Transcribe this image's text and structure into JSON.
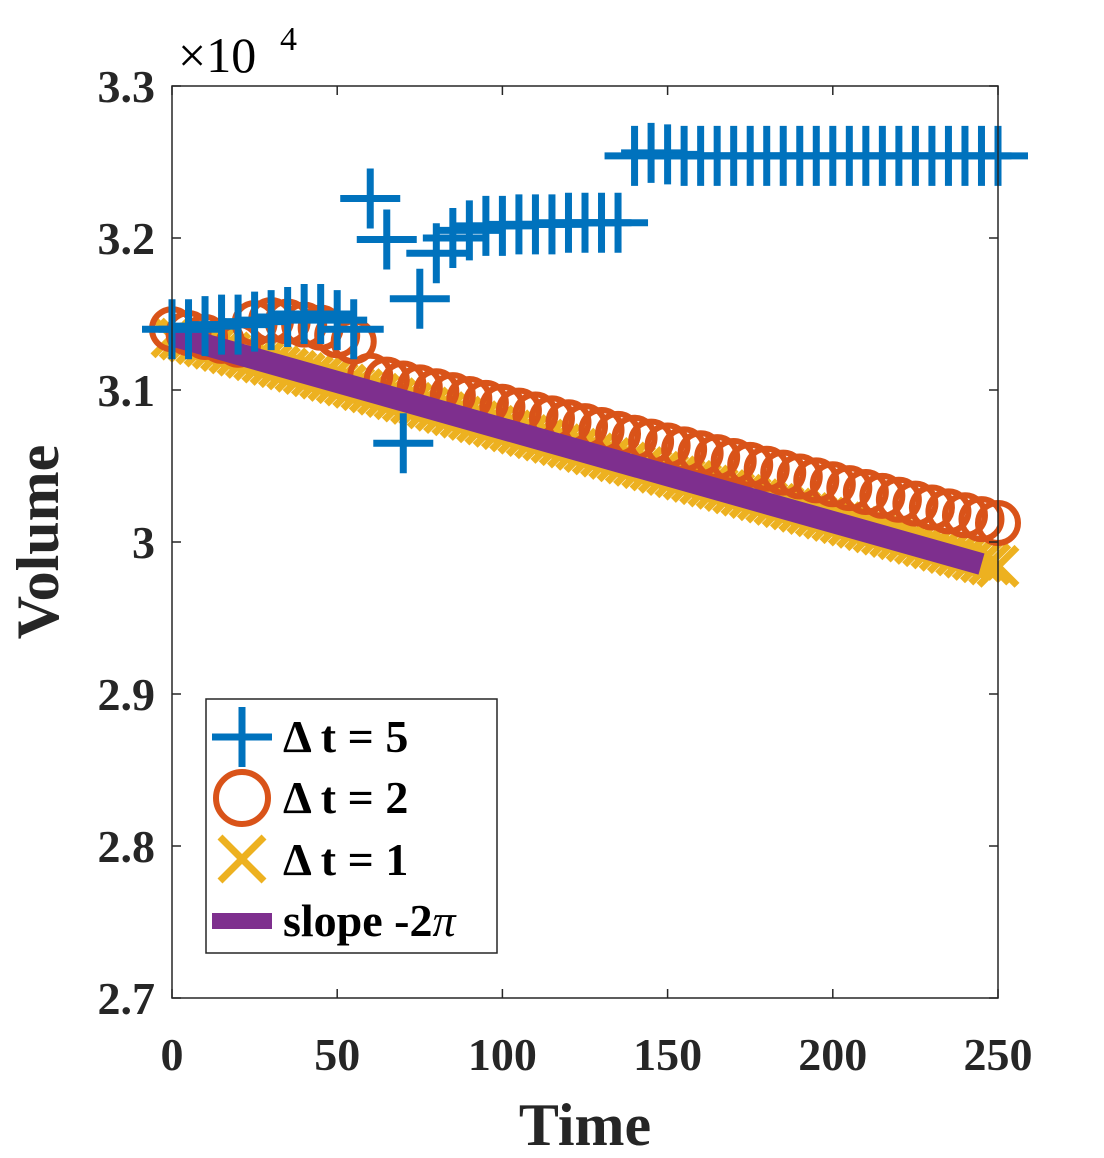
{
  "chart_data": {
    "type": "scatter",
    "title": "",
    "xlabel": "Time",
    "ylabel": "Volume",
    "xlim": [
      0,
      250
    ],
    "ylim": [
      2.7,
      3.3
    ],
    "y_multiplier_label": "×10",
    "y_multiplier_exponent": "4",
    "xticks": [
      0,
      50,
      100,
      150,
      200,
      250
    ],
    "yticks": [
      2.7,
      2.8,
      2.9,
      3.0,
      3.1,
      3.2,
      3.3
    ],
    "xtick_labels": [
      "0",
      "50",
      "100",
      "150",
      "200",
      "250"
    ],
    "ytick_labels": [
      "2.7",
      "2.8",
      "2.9",
      "3",
      "3.1",
      "3.2",
      "3.3"
    ],
    "grid": false,
    "legend_position": "bottom-left",
    "series": [
      {
        "name": "Δ t = 5",
        "marker": "plus",
        "color": "#0072BD",
        "x": [
          0,
          5,
          10,
          15,
          20,
          25,
          30,
          35,
          40,
          45,
          50,
          55,
          60,
          65,
          70,
          75,
          80,
          85,
          90,
          95,
          100,
          105,
          110,
          115,
          120,
          125,
          130,
          135,
          140,
          145,
          150,
          155,
          160,
          165,
          170,
          175,
          180,
          185,
          190,
          195,
          200,
          205,
          210,
          215,
          220,
          225,
          230,
          235,
          240,
          245,
          250
        ],
        "y": [
          3.14,
          3.14,
          3.142,
          3.143,
          3.143,
          3.145,
          3.146,
          3.148,
          3.15,
          3.15,
          3.146,
          3.14,
          3.226,
          3.199,
          3.065,
          3.16,
          3.19,
          3.2,
          3.205,
          3.208,
          3.208,
          3.209,
          3.209,
          3.209,
          3.21,
          3.21,
          3.21,
          3.21,
          3.254,
          3.256,
          3.255,
          3.254,
          3.254,
          3.254,
          3.254,
          3.254,
          3.254,
          3.254,
          3.254,
          3.254,
          3.254,
          3.254,
          3.254,
          3.254,
          3.254,
          3.254,
          3.254,
          3.254,
          3.254,
          3.254,
          3.254
        ]
      },
      {
        "name": "Δ t = 2",
        "marker": "circle",
        "color": "#D95319",
        "x_start": 0,
        "x_end": 250,
        "x_step": 5,
        "y_start": 3.14,
        "y_end": 3.0125,
        "bump_x": [
          25,
          30,
          35,
          40,
          45,
          50,
          55
        ],
        "bump_y": [
          3.144,
          3.146,
          3.145,
          3.143,
          3.141,
          3.136,
          3.132
        ]
      },
      {
        "name": "Δ t = 1",
        "marker": "x",
        "color": "#EDB120",
        "x_start": 0,
        "x_end": 250,
        "x_step": 2.5,
        "y_start": 3.135,
        "y_end": 2.984
      },
      {
        "name": "slope -2π",
        "marker": "line",
        "color": "#7E2F8E",
        "x": [
          0,
          245
        ],
        "y": [
          3.136,
          2.9855
        ]
      }
    ],
    "legend": {
      "entries": [
        {
          "prefix": "Δ t = ",
          "value": "5"
        },
        {
          "prefix": "Δ t = ",
          "value": "2"
        },
        {
          "prefix": "Δ t = ",
          "value": "1"
        },
        {
          "prefix": "slope -2",
          "value": "π"
        }
      ]
    }
  }
}
